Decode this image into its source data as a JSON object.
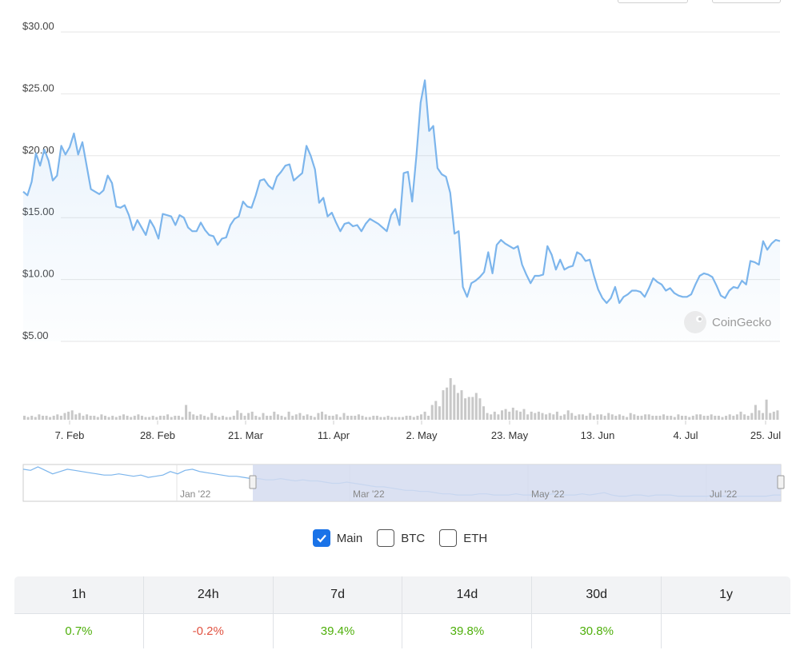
{
  "chart_data": {
    "type": "line",
    "y_tick_labels": [
      "$30.00",
      "$25.00",
      "$20.00",
      "$15.00",
      "$10.00",
      "$5.00"
    ],
    "y_ticks": [
      30,
      25,
      20,
      15,
      10,
      5
    ],
    "ylim": [
      5,
      30
    ],
    "x_tick_labels": [
      "7. Feb",
      "28. Feb",
      "21. Mar",
      "11. Apr",
      "2. May",
      "23. May",
      "13. Jun",
      "4. Jul",
      "25. Jul"
    ],
    "grid": true,
    "series": [
      {
        "values": [
          17.1,
          16.8,
          17.9,
          20.2,
          19.2,
          20.5,
          19.6,
          18.0,
          18.4,
          20.8,
          20.1,
          20.7,
          21.8,
          20.1,
          21.1,
          19.2,
          17.3,
          17.1,
          16.9,
          17.2,
          18.4,
          17.8,
          15.9,
          15.8,
          16.0,
          15.2,
          14.0,
          14.8,
          14.2,
          13.6,
          14.8,
          14.2,
          13.3,
          15.3,
          15.2,
          15.1,
          14.4,
          15.2,
          15.0,
          14.2,
          13.9,
          13.9,
          14.6,
          14.0,
          13.6,
          13.5,
          12.8,
          13.3,
          13.4,
          14.4,
          14.9,
          15.1,
          16.3,
          15.9,
          15.8,
          16.8,
          18.0,
          18.1,
          17.6,
          17.3,
          18.3,
          18.7,
          19.2,
          19.3,
          18.0,
          18.3,
          18.6,
          20.8,
          20.0,
          18.9,
          16.2,
          16.6,
          15.1,
          15.4,
          14.6,
          13.9,
          14.5,
          14.6,
          14.3,
          14.4,
          13.9,
          14.5,
          14.9,
          14.7,
          14.5,
          14.2,
          13.9,
          15.2,
          15.7,
          14.4,
          18.6,
          18.7,
          16.3,
          20.0,
          24.3,
          26.1,
          22.0,
          22.4,
          19.0,
          18.5,
          18.3,
          17.0,
          13.7,
          13.9,
          9.4,
          8.6,
          9.7,
          9.9,
          10.2,
          10.6,
          12.2,
          10.5,
          12.8,
          13.2,
          12.9,
          12.7,
          12.5,
          12.7,
          11.2,
          10.4,
          9.7,
          10.3,
          10.3,
          10.4,
          12.7,
          12.0,
          10.8,
          11.6,
          10.8,
          11.0,
          11.1,
          12.2,
          12.0,
          11.5,
          11.6,
          10.3,
          9.2,
          8.5,
          8.1,
          8.5,
          9.4,
          8.1,
          8.6,
          8.8,
          9.1,
          9.1,
          9.0,
          8.6,
          9.3,
          10.1,
          9.8,
          9.6,
          9.1,
          9.3,
          8.9,
          8.7,
          8.6,
          8.6,
          8.8,
          9.6,
          10.3,
          10.5,
          10.4,
          10.2,
          9.5,
          8.7,
          8.5,
          9.1,
          9.4,
          9.3,
          9.9,
          9.6,
          11.5,
          11.4,
          11.2,
          13.1,
          12.4,
          12.9,
          13.2,
          13.1
        ]
      }
    ],
    "volume_values": [
      3,
      2,
      3,
      2,
      4,
      3,
      3,
      2,
      3,
      4,
      3,
      5,
      6,
      7,
      4,
      5,
      3,
      4,
      3,
      3,
      2,
      4,
      3,
      2,
      3,
      2,
      3,
      4,
      3,
      2,
      3,
      4,
      3,
      2,
      2,
      3,
      2,
      3,
      3,
      4,
      2,
      3,
      3,
      2,
      11,
      6,
      4,
      3,
      4,
      3,
      2,
      5,
      3,
      2,
      3,
      2,
      2,
      3,
      7,
      5,
      3,
      5,
      6,
      3,
      2,
      5,
      3,
      3,
      6,
      4,
      3,
      2,
      6,
      3,
      4,
      5,
      3,
      4,
      3,
      2,
      5,
      6,
      4,
      3,
      3,
      4,
      2,
      5,
      3,
      3,
      3,
      4,
      3,
      2,
      2,
      3,
      3,
      2,
      2,
      3,
      2,
      2,
      2,
      2,
      3,
      3,
      2,
      3,
      4,
      6,
      3,
      11,
      14,
      10,
      22,
      24,
      31,
      26,
      20,
      22,
      16,
      17,
      17,
      20,
      16,
      10,
      5,
      4,
      6,
      4,
      7,
      8,
      6,
      9,
      7,
      6,
      8,
      4,
      6,
      5,
      6,
      5,
      4,
      5,
      4,
      6,
      3,
      4,
      7,
      5,
      3,
      4,
      4,
      3,
      5,
      3,
      4,
      4,
      3,
      5,
      4,
      3,
      4,
      3,
      2,
      5,
      4,
      3,
      3,
      4,
      4,
      3,
      3,
      3,
      4,
      3,
      3,
      2,
      4,
      3,
      3,
      2,
      3,
      4,
      4,
      3,
      3,
      4,
      3,
      3,
      2,
      3,
      4,
      3,
      4,
      6,
      4,
      3,
      5,
      11,
      7,
      5,
      15,
      5,
      6,
      7
    ],
    "navigator": {
      "tick_labels": [
        "Jan '22",
        "Mar '22",
        "May '22",
        "Jul '22"
      ],
      "series": [
        26,
        25,
        28,
        25,
        22,
        24,
        26,
        25,
        24,
        23,
        22,
        21,
        21,
        22,
        21,
        20,
        21,
        19,
        20,
        21,
        24,
        22,
        25,
        26,
        24,
        23,
        22,
        21,
        20,
        20,
        19,
        18,
        18,
        17,
        17,
        18,
        17,
        16,
        17,
        16,
        16,
        15,
        14,
        14,
        15,
        14,
        13,
        12,
        11,
        11,
        10,
        9,
        8,
        8,
        7,
        7,
        6,
        5,
        5,
        4,
        4,
        4,
        5,
        5,
        4,
        4,
        4,
        5,
        4,
        4,
        4,
        4,
        5,
        4,
        4,
        4,
        5,
        4,
        5,
        6,
        4,
        3,
        3,
        4,
        4,
        3,
        4,
        4,
        4,
        3,
        3,
        3,
        3,
        3,
        4,
        3,
        3,
        3,
        3,
        3,
        3,
        3,
        4,
        4
      ]
    }
  },
  "watermark": {
    "text": "CoinGecko"
  },
  "legend": [
    {
      "label": "Main",
      "checked": true
    },
    {
      "label": "BTC",
      "checked": false
    },
    {
      "label": "ETH",
      "checked": false
    }
  ],
  "performance": {
    "headers": [
      "1h",
      "24h",
      "7d",
      "14d",
      "30d",
      "1y"
    ],
    "values": [
      "0.7%",
      "-0.2%",
      "39.4%",
      "39.8%",
      "30.8%",
      ""
    ],
    "colors": {
      "positive": "#4eaf0a",
      "negative": "#e15241"
    }
  },
  "colors": {
    "line": "#7cb5ec",
    "volume": "#c8c8c8",
    "nav_mask": "#d5dcf0"
  }
}
